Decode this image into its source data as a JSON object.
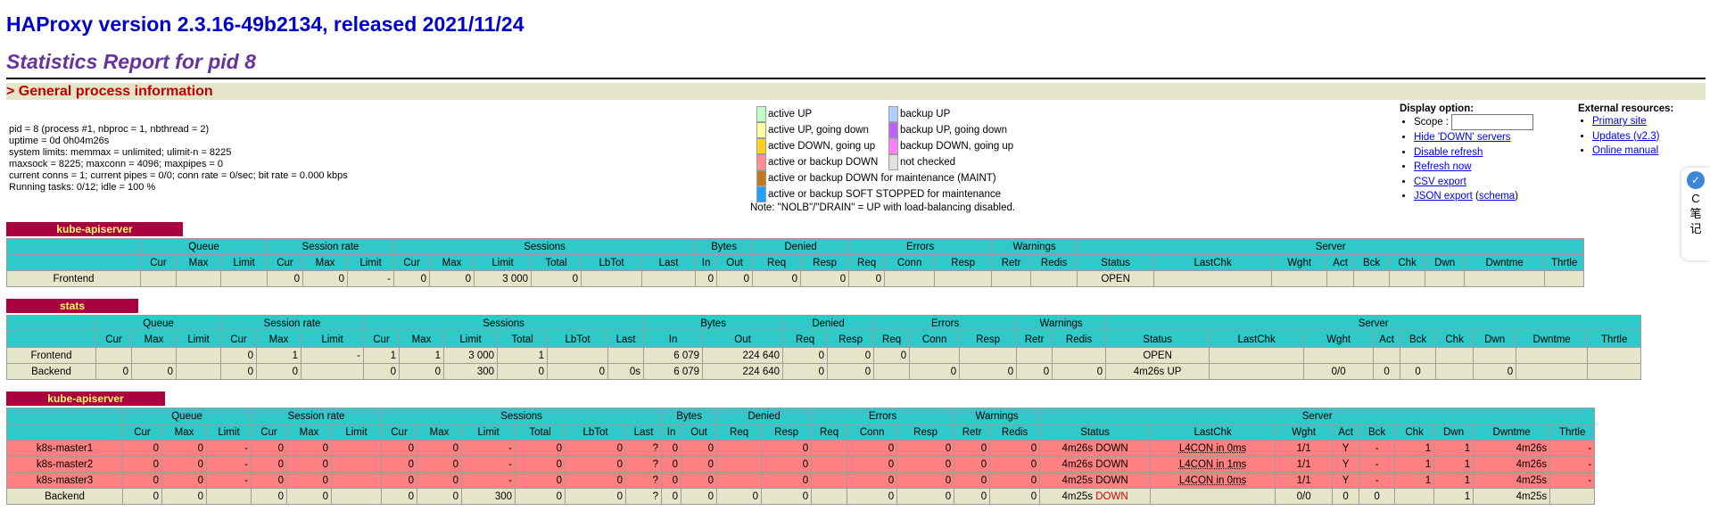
{
  "header": {
    "title": "HAProxy version 2.3.16-49b2134, released 2021/11/24",
    "subtitle": "Statistics Report for pid 8",
    "section": "> General process information"
  },
  "process_info": {
    "pid": "pid = 8 (process #1, nbproc = 1, nbthread = 2)",
    "uptime": "uptime = 0d 0h04m26s",
    "system_limits": "system limits: memmax = unlimited; ulimit-n = 8225",
    "maxsock": "maxsock = 8225; maxconn = 4096; maxpipes = 0",
    "conns": "current conns = 1; current pipes = 0/0; conn rate = 0/sec; bit rate = 0.000 kbps",
    "tasks": "Running tasks: 0/12; idle = 100 %"
  },
  "legend": {
    "items": [
      {
        "label": "active UP",
        "color": "#c0ffc0"
      },
      {
        "label": "active UP, going down",
        "color": "#ffffa0"
      },
      {
        "label": "active DOWN, going up",
        "color": "#ffd020"
      },
      {
        "label": "active or backup DOWN",
        "color": "#ff9090"
      },
      {
        "label": "active or backup DOWN for maintenance (MAINT)",
        "color": "#c07820"
      },
      {
        "label": "active or backup SOFT STOPPED for maintenance",
        "color": "#20a0ff"
      },
      {
        "label": "backup UP",
        "color": "#b0d0ff"
      },
      {
        "label": "backup UP, going down",
        "color": "#c060ff"
      },
      {
        "label": "backup DOWN, going up",
        "color": "#ff80ff"
      },
      {
        "label": "not checked",
        "color": "#e0e0e0"
      }
    ],
    "note": "Note: \"NOLB\"/\"DRAIN\" = UP with load-balancing disabled."
  },
  "display": {
    "title": "Display option:",
    "scope_label": "Scope :",
    "scope_value": "",
    "links": [
      "Hide 'DOWN' servers",
      "Disable refresh",
      "Refresh now",
      "CSV export"
    ],
    "json_export": "JSON export",
    "schema": "schema"
  },
  "external": {
    "title": "External resources:",
    "links": [
      "Primary site",
      "Updates (v2.3)",
      "Online manual"
    ]
  },
  "side_button": {
    "icon": "C",
    "text1": "笔",
    "text2": "记"
  },
  "columns": {
    "groups": [
      "Queue",
      "Session rate",
      "Sessions",
      "Bytes",
      "Denied",
      "Errors",
      "Warnings",
      "Server"
    ],
    "sub": [
      "Cur",
      "Max",
      "Limit",
      "Cur",
      "Max",
      "Limit",
      "Cur",
      "Max",
      "Limit",
      "Total",
      "LbTot",
      "Last",
      "In",
      "Out",
      "Req",
      "Resp",
      "Req",
      "Conn",
      "Resp",
      "Retr",
      "Redis",
      "Status",
      "LastChk",
      "Wght",
      "Act",
      "Bck",
      "Chk",
      "Dwn",
      "Dwntme",
      "Thrtle"
    ]
  },
  "proxies": [
    {
      "name": "kube-apiserver",
      "rows": [
        {
          "name": "Frontend",
          "type": "fe",
          "cells": [
            "",
            "",
            "",
            "0",
            "0",
            "-",
            "0",
            "0",
            "3 000",
            "0",
            "",
            "",
            "0",
            "0",
            "0",
            "0",
            "0",
            "",
            "",
            "",
            "",
            "OPEN",
            "",
            "",
            "",
            "",
            "",
            "",
            "",
            ""
          ]
        }
      ]
    },
    {
      "name": "stats",
      "rows": [
        {
          "name": "Frontend",
          "type": "fe",
          "cells": [
            "",
            "",
            "",
            "0",
            "1",
            "-",
            "1",
            "1",
            "3 000",
            "1",
            "",
            "",
            "6 079",
            "224 640",
            "0",
            "0",
            "0",
            "",
            "",
            "",
            "",
            "OPEN",
            "",
            "",
            "",
            "",
            "",
            "",
            "",
            ""
          ]
        },
        {
          "name": "Backend",
          "type": "fe",
          "cells": [
            "0",
            "0",
            "",
            "0",
            "0",
            "",
            "0",
            "0",
            "300",
            "0",
            "0",
            "0s",
            "6 079",
            "224 640",
            "0",
            "0",
            "",
            "0",
            "0",
            "0",
            "0",
            "4m26s UP",
            "",
            "0/0",
            "0",
            "0",
            "",
            "0",
            "",
            ""
          ]
        }
      ]
    },
    {
      "name": "kube-apiserver",
      "rows": [
        {
          "name": "k8s-master1",
          "type": "dn",
          "cells": [
            "0",
            "0",
            "-",
            "0",
            "0",
            "",
            "0",
            "0",
            "-",
            "0",
            "0",
            "?",
            "0",
            "0",
            "",
            "0",
            "",
            "0",
            "0",
            "0",
            "0",
            "4m26s DOWN",
            "L4CON in 0ms",
            "1/1",
            "Y",
            "-",
            "1",
            "1",
            "4m26s",
            "-"
          ]
        },
        {
          "name": "k8s-master2",
          "type": "dn",
          "cells": [
            "0",
            "0",
            "-",
            "0",
            "0",
            "",
            "0",
            "0",
            "-",
            "0",
            "0",
            "?",
            "0",
            "0",
            "",
            "0",
            "",
            "0",
            "0",
            "0",
            "0",
            "4m26s DOWN",
            "L4CON in 1ms",
            "1/1",
            "Y",
            "-",
            "1",
            "1",
            "4m26s",
            "-"
          ]
        },
        {
          "name": "k8s-master3",
          "type": "dn",
          "cells": [
            "0",
            "0",
            "-",
            "0",
            "0",
            "",
            "0",
            "0",
            "-",
            "0",
            "0",
            "?",
            "0",
            "0",
            "",
            "0",
            "",
            "0",
            "0",
            "0",
            "0",
            "4m25s DOWN",
            "L4CON in 0ms",
            "1/1",
            "Y",
            "-",
            "1",
            "1",
            "4m25s",
            "-"
          ]
        },
        {
          "name": "Backend",
          "type": "fe",
          "cells": [
            "0",
            "0",
            "",
            "0",
            "0",
            "",
            "0",
            "0",
            "300",
            "0",
            "0",
            "?",
            "0",
            "0",
            "0",
            "0",
            "",
            "0",
            "0",
            "0",
            "0",
            "4m25s DOWN",
            "",
            "0/0",
            "0",
            "0",
            "",
            "1",
            "4m25s",
            ""
          ]
        }
      ]
    }
  ]
}
